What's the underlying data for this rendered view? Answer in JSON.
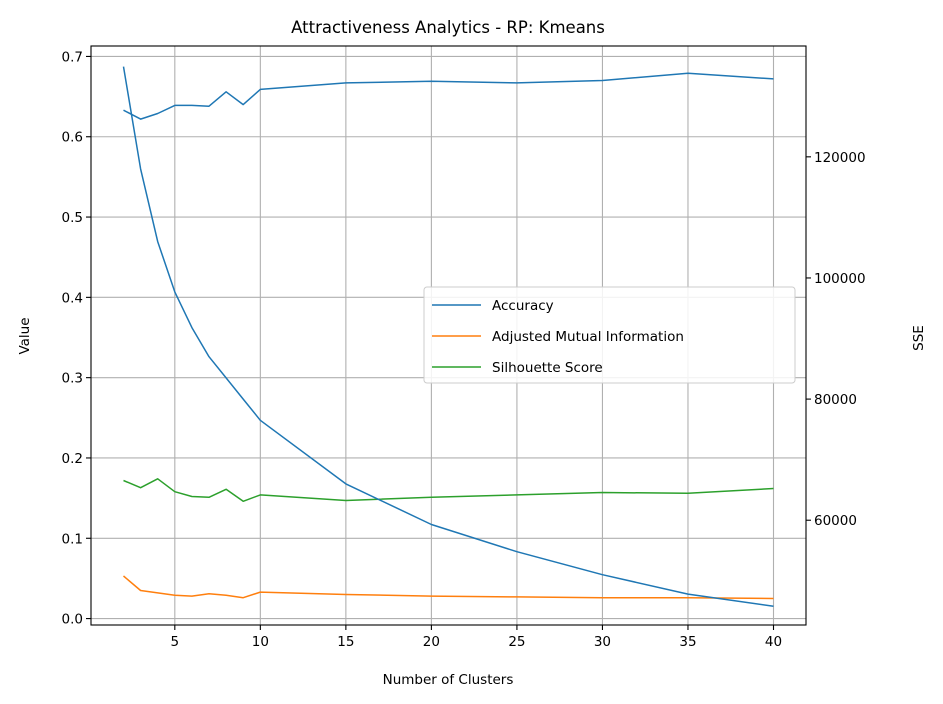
{
  "chart_data": {
    "type": "line",
    "title": "Attractiveness Analytics - RP: Kmeans",
    "xlabel": "Number of Clusters",
    "ylabel": "Value",
    "y2label": "SSE",
    "xlim": [
      0.1,
      41.9
    ],
    "ylim": [
      -0.008,
      0.713
    ],
    "y2lim": [
      42700,
      138300
    ],
    "xticks": [
      5,
      10,
      15,
      20,
      25,
      30,
      35,
      40
    ],
    "yticks": [
      0.0,
      0.1,
      0.2,
      0.3,
      0.4,
      0.5,
      0.6,
      0.7
    ],
    "y2ticks": [
      60000,
      80000,
      100000,
      120000
    ],
    "grid": true,
    "legend_position": "center-right",
    "x": [
      2,
      3,
      4,
      5,
      6,
      7,
      8,
      9,
      10,
      15,
      20,
      25,
      30,
      35,
      40
    ],
    "series": [
      {
        "name": "Accuracy",
        "axis": "left",
        "color": "#1f77b4",
        "values": [
          0.633,
          0.622,
          0.629,
          0.639,
          0.639,
          0.638,
          0.656,
          0.64,
          0.659,
          0.667,
          0.669,
          0.667,
          0.67,
          0.679,
          0.672
        ]
      },
      {
        "name": "Adjusted Mutual Information",
        "axis": "left",
        "color": "#ff7f0e",
        "values": [
          0.053,
          0.035,
          0.032,
          0.029,
          0.028,
          0.031,
          0.029,
          0.026,
          0.033,
          0.03,
          0.028,
          0.027,
          0.026,
          0.026,
          0.025
        ]
      },
      {
        "name": "Silhouette Score",
        "axis": "left",
        "color": "#2ca02c",
        "values": [
          0.172,
          0.163,
          0.174,
          0.158,
          0.152,
          0.151,
          0.161,
          0.146,
          0.154,
          0.147,
          0.151,
          0.154,
          0.157,
          0.156,
          0.162
        ]
      },
      {
        "name": "",
        "axis": "right",
        "color": "#1f77b4",
        "values": [
          134900,
          118000,
          106000,
          97700,
          91800,
          87000,
          83500,
          80000,
          76500,
          66000,
          59300,
          54800,
          51000,
          47800,
          45800
        ]
      }
    ]
  }
}
